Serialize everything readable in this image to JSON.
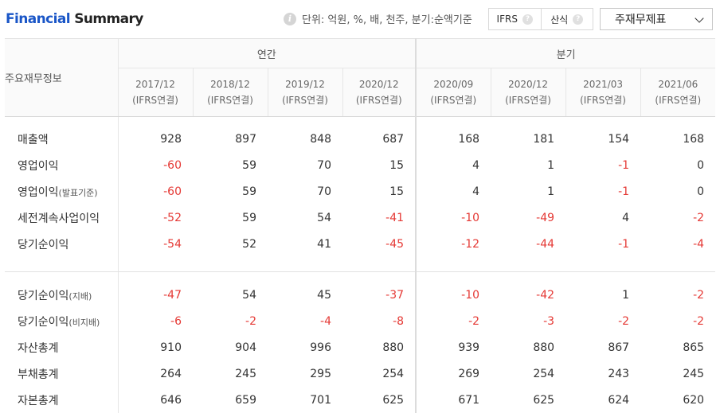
{
  "header": {
    "title_part1": "Financial",
    "title_part2": " Summary",
    "unit_text": "단위: 억원, %, 배, 천주, 분기:순액기준",
    "toggle": [
      {
        "label": "IFRS"
      },
      {
        "label": "산식"
      }
    ],
    "select_value": "주재무제표"
  },
  "table": {
    "row_header": "주요재무정보",
    "group_annual": "연간",
    "group_quarter": "분기",
    "periods": [
      {
        "date": "2017/12",
        "basis": "(IFRS연결)"
      },
      {
        "date": "2018/12",
        "basis": "(IFRS연결)"
      },
      {
        "date": "2019/12",
        "basis": "(IFRS연결)"
      },
      {
        "date": "2020/12",
        "basis": "(IFRS연결)"
      },
      {
        "date": "2020/09",
        "basis": "(IFRS연결)"
      },
      {
        "date": "2020/12",
        "basis": "(IFRS연결)"
      },
      {
        "date": "2021/03",
        "basis": "(IFRS연결)"
      },
      {
        "date": "2021/06",
        "basis": "(IFRS연결)"
      }
    ],
    "rows_a": [
      {
        "label": "매출액",
        "suffix": "",
        "values": [
          "928",
          "897",
          "848",
          "687",
          "168",
          "181",
          "154",
          "168"
        ]
      },
      {
        "label": "영업이익",
        "suffix": "",
        "values": [
          "-60",
          "59",
          "70",
          "15",
          "4",
          "1",
          "-1",
          "0"
        ]
      },
      {
        "label": "영업이익",
        "suffix": "(발표기준)",
        "values": [
          "-60",
          "59",
          "70",
          "15",
          "4",
          "1",
          "-1",
          "0"
        ]
      },
      {
        "label": "세전계속사업이익",
        "suffix": "",
        "values": [
          "-52",
          "59",
          "54",
          "-41",
          "-10",
          "-49",
          "4",
          "-2"
        ]
      },
      {
        "label": "당기순이익",
        "suffix": "",
        "values": [
          "-54",
          "52",
          "41",
          "-45",
          "-12",
          "-44",
          "-1",
          "-4"
        ]
      }
    ],
    "rows_b": [
      {
        "label": "당기순이익",
        "suffix": "(지배)",
        "values": [
          "-47",
          "54",
          "45",
          "-37",
          "-10",
          "-42",
          "1",
          "-2"
        ]
      },
      {
        "label": "당기순이익",
        "suffix": "(비지배)",
        "values": [
          "-6",
          "-2",
          "-4",
          "-8",
          "-2",
          "-3",
          "-2",
          "-2"
        ]
      },
      {
        "label": "자산총계",
        "suffix": "",
        "values": [
          "910",
          "904",
          "996",
          "880",
          "939",
          "880",
          "867",
          "865"
        ]
      },
      {
        "label": "부채총계",
        "suffix": "",
        "values": [
          "264",
          "245",
          "295",
          "254",
          "269",
          "254",
          "243",
          "245"
        ]
      },
      {
        "label": "자본총계",
        "suffix": "",
        "values": [
          "646",
          "659",
          "701",
          "625",
          "671",
          "625",
          "624",
          "620"
        ]
      }
    ]
  },
  "colors": {
    "negative": "#e53935",
    "title_blue": "#1a56c7"
  }
}
